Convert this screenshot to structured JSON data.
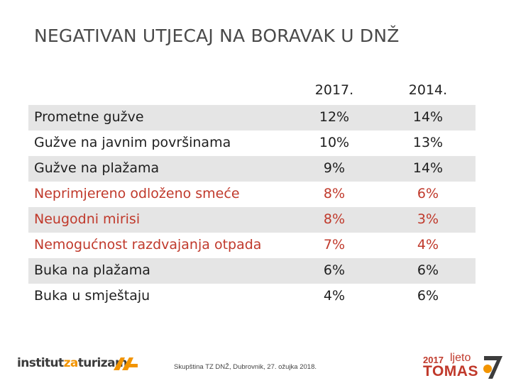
{
  "title": "NEGATIVAN UTJECAJ NA BORAVAK U DNŽ",
  "columns": [
    "2017.",
    "2014."
  ],
  "rows": [
    {
      "label": "Prometne gužve",
      "v2017": "12%",
      "v2014": "14%"
    },
    {
      "label": "Gužve na javnim površinama",
      "v2017": "10%",
      "v2014": "13%"
    },
    {
      "label": "Gužve na plažama",
      "v2017": "9%",
      "v2014": "14%"
    },
    {
      "label": "Neprimjereno odloženo smeće",
      "v2017": "8%",
      "v2014": "6%"
    },
    {
      "label": "Neugodni mirisi",
      "v2017": "8%",
      "v2014": "3%"
    },
    {
      "label": "Nemogućnost razdvajanja otpada",
      "v2017": "7%",
      "v2014": "4%"
    },
    {
      "label": "Buka na plažama",
      "v2017": "6%",
      "v2014": "6%"
    },
    {
      "label": "Buka u smještaju",
      "v2017": "4%",
      "v2014": "6%"
    }
  ],
  "highlight_color": "#c0392b",
  "footer_text": "Skupština TZ DNŽ, Dubrovnik, 27. ožujka 2018.",
  "logo_left": {
    "part1": "institut",
    "part2": "za",
    "part3": "turizam"
  },
  "logo_right": {
    "year": "2017",
    "word1": "ljeto",
    "word2": "TOMAS"
  }
}
